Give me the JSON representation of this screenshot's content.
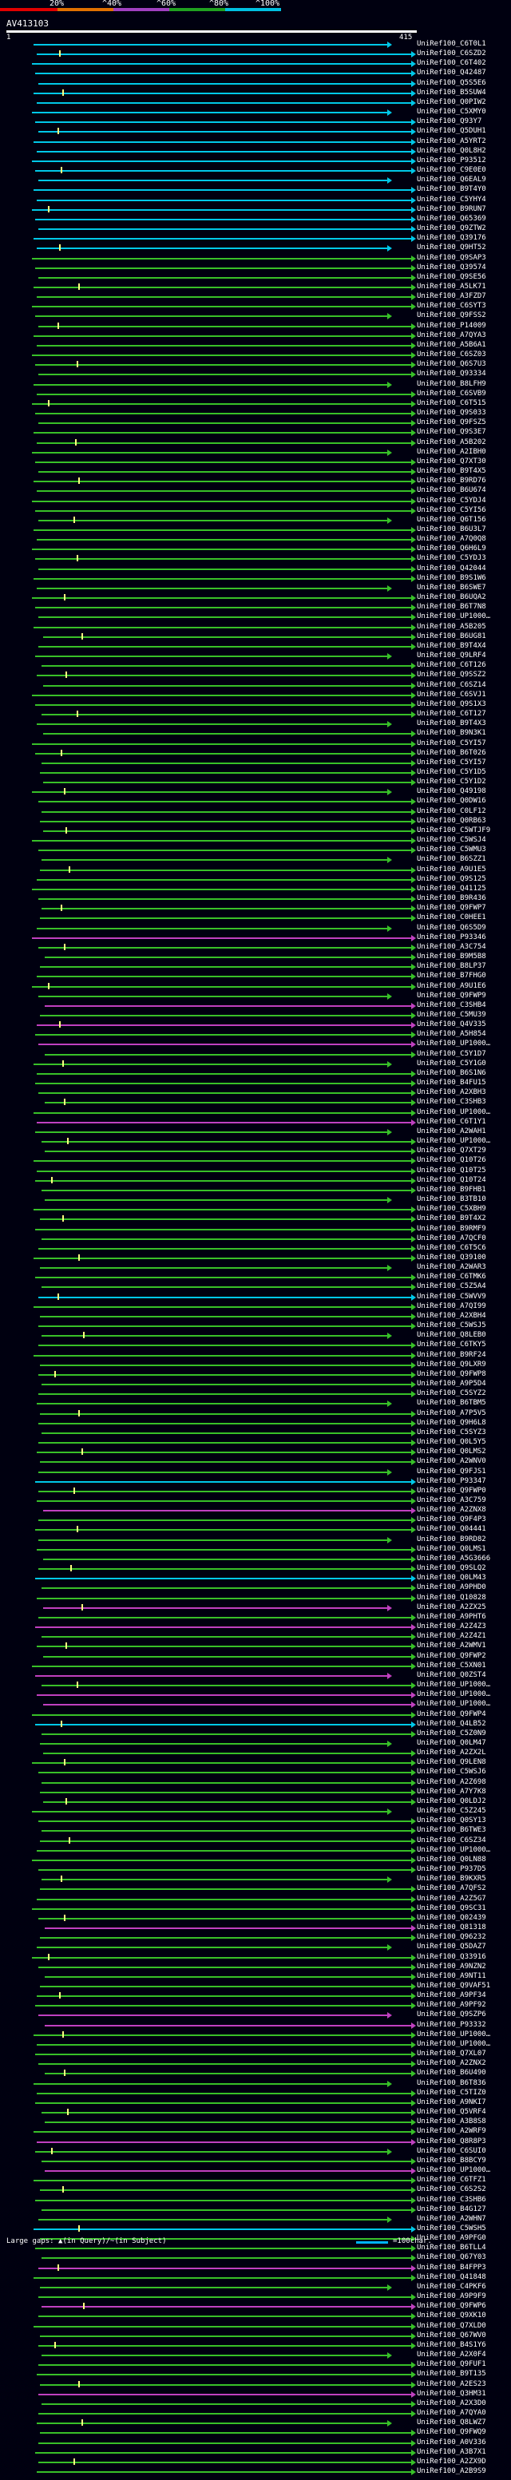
{
  "scale": {
    "labels": [
      "20%",
      "^40%",
      "^60%",
      "^80%",
      "^100%"
    ],
    "colors": [
      "#e00000",
      "#e07000",
      "#a040c0",
      "#20a020",
      "#00c0e0"
    ]
  },
  "query": {
    "title": "AV413103",
    "start": "1",
    "end": "415"
  },
  "colors": {
    "cyan": "#00c8e8",
    "green": "#38c028",
    "magenta": "#c040c0",
    "tick": "#ffff80"
  },
  "hits": [
    {
      "label": "UniRef100_C6T0L1",
      "color": "cyan"
    },
    {
      "label": "UniRef100_C6SZD2",
      "color": "cyan"
    },
    {
      "label": "UniRef100_C6T402",
      "color": "cyan"
    },
    {
      "label": "UniRef100_Q42487",
      "color": "cyan"
    },
    {
      "label": "UniRef100_Q5S5E6",
      "color": "cyan"
    },
    {
      "label": "UniRef100_B5SUW4",
      "color": "cyan"
    },
    {
      "label": "UniRef100_Q0PIW2",
      "color": "cyan"
    },
    {
      "label": "UniRef100_C5XMY0",
      "color": "cyan"
    },
    {
      "label": "UniRef100_Q93Y7",
      "color": "cyan"
    },
    {
      "label": "UniRef100_Q5DUH1",
      "color": "cyan"
    },
    {
      "label": "UniRef100_A5YRT2",
      "color": "cyan"
    },
    {
      "label": "UniRef100_Q0L8H2",
      "color": "cyan"
    },
    {
      "label": "UniRef100_P93512",
      "color": "cyan"
    },
    {
      "label": "UniRef100_C9E0E0",
      "color": "cyan"
    },
    {
      "label": "UniRef100_Q6EAL9",
      "color": "cyan"
    },
    {
      "label": "UniRef100_B9T4Y0",
      "color": "cyan"
    },
    {
      "label": "UniRef100_C5YHY4",
      "color": "cyan"
    },
    {
      "label": "UniRef100_B9RUN7",
      "color": "cyan"
    },
    {
      "label": "UniRef100_Q65369",
      "color": "cyan"
    },
    {
      "label": "UniRef100_Q9ZTW2",
      "color": "cyan"
    },
    {
      "label": "UniRef100_Q39176",
      "color": "cyan"
    },
    {
      "label": "UniRef100_Q9HT52",
      "color": "cyan"
    },
    {
      "label": "UniRef100_Q9SAP3",
      "color": "green"
    },
    {
      "label": "UniRef100_Q39574",
      "color": "green"
    },
    {
      "label": "UniRef100_Q9SE56",
      "color": "green"
    },
    {
      "label": "UniRef100_A5LK71",
      "color": "green"
    },
    {
      "label": "UniRef100_A3FZD7",
      "color": "green"
    },
    {
      "label": "UniRef100_C6SYT3",
      "color": "green"
    },
    {
      "label": "UniRef100_Q9FSS2",
      "color": "green"
    },
    {
      "label": "UniRef100_P14009",
      "color": "green"
    },
    {
      "label": "UniRef100_A7QYA3",
      "color": "green"
    },
    {
      "label": "UniRef100_A5B6A1",
      "color": "green"
    },
    {
      "label": "UniRef100_C6SZ03",
      "color": "green"
    },
    {
      "label": "UniRef100_Q6S7U3",
      "color": "green"
    },
    {
      "label": "UniRef100_Q93334",
      "color": "green"
    },
    {
      "label": "UniRef100_B8LFH9",
      "color": "green"
    },
    {
      "label": "UniRef100_C6SVB9",
      "color": "green"
    },
    {
      "label": "UniRef100_C6T515",
      "color": "green"
    },
    {
      "label": "UniRef100_Q9S033",
      "color": "green"
    },
    {
      "label": "UniRef100_Q9FSZ5",
      "color": "green"
    },
    {
      "label": "UniRef100_Q9S3E7",
      "color": "green"
    },
    {
      "label": "UniRef100_A5B202",
      "color": "green"
    },
    {
      "label": "UniRef100_A2IBH0",
      "color": "green"
    },
    {
      "label": "UniRef100_Q7XT30",
      "color": "green"
    },
    {
      "label": "UniRef100_B9T4X5",
      "color": "green"
    },
    {
      "label": "UniRef100_B9RD76",
      "color": "green"
    },
    {
      "label": "UniRef100_B6U674",
      "color": "green"
    },
    {
      "label": "UniRef100_C5YDJ4",
      "color": "green"
    },
    {
      "label": "UniRef100_C5YI56",
      "color": "green"
    },
    {
      "label": "UniRef100_Q6T156",
      "color": "green"
    },
    {
      "label": "UniRef100_B6U3L7",
      "color": "green"
    },
    {
      "label": "UniRef100_A7Q0Q8",
      "color": "green"
    },
    {
      "label": "UniRef100_Q6H6L9",
      "color": "green"
    },
    {
      "label": "UniRef100_C5YDJ3",
      "color": "green"
    },
    {
      "label": "UniRef100_Q42044",
      "color": "green"
    },
    {
      "label": "UniRef100_B9S1W6",
      "color": "green"
    },
    {
      "label": "UniRef100_B6SWE7",
      "color": "green"
    },
    {
      "label": "UniRef100_B6UQA2",
      "color": "green"
    },
    {
      "label": "UniRef100_B6T7N8",
      "color": "green"
    },
    {
      "label": "UniRef100_UP1000…",
      "color": "green"
    },
    {
      "label": "UniRef100_A5B205",
      "color": "green"
    },
    {
      "label": "UniRef100_B6UG81",
      "color": "green"
    },
    {
      "label": "UniRef100_B9T4X4",
      "color": "green"
    },
    {
      "label": "UniRef100_Q9LRF4",
      "color": "green"
    },
    {
      "label": "UniRef100_C6T126",
      "color": "green"
    },
    {
      "label": "UniRef100_Q9SSZ2",
      "color": "green"
    },
    {
      "label": "UniRef100_C6SZ14",
      "color": "green"
    },
    {
      "label": "UniRef100_C6SVJ1",
      "color": "green"
    },
    {
      "label": "UniRef100_Q9S1X3",
      "color": "green"
    },
    {
      "label": "UniRef100_C6T127",
      "color": "green"
    },
    {
      "label": "UniRef100_B9T4X3",
      "color": "green"
    },
    {
      "label": "UniRef100_B9N3K1",
      "color": "green"
    },
    {
      "label": "UniRef100_C5YI57",
      "color": "green"
    },
    {
      "label": "UniRef100_B6T026",
      "color": "green"
    },
    {
      "label": "UniRef100_C5YI57",
      "color": "green"
    },
    {
      "label": "UniRef100_C5Y1D5",
      "color": "green"
    },
    {
      "label": "UniRef100_C5Y1D2",
      "color": "green"
    },
    {
      "label": "UniRef100_Q49198",
      "color": "green"
    },
    {
      "label": "UniRef100_Q0DW16",
      "color": "green"
    },
    {
      "label": "UniRef100_C0LF12",
      "color": "green"
    },
    {
      "label": "UniRef100_Q0RB63",
      "color": "green"
    },
    {
      "label": "UniRef100_C5WTJF9",
      "color": "green"
    },
    {
      "label": "UniRef100_C5WSJ4",
      "color": "green"
    },
    {
      "label": "UniRef100_C5WMU3",
      "color": "green"
    },
    {
      "label": "UniRef100_B6SZZ1",
      "color": "green"
    },
    {
      "label": "UniRef100_A9U1E5",
      "color": "green"
    },
    {
      "label": "UniRef100_Q9S125",
      "color": "green"
    },
    {
      "label": "UniRef100_Q41125",
      "color": "green"
    },
    {
      "label": "UniRef100_B9R436",
      "color": "green"
    },
    {
      "label": "UniRef100_Q9FWP7",
      "color": "green"
    },
    {
      "label": "UniRef100_C0HEE1",
      "color": "green"
    },
    {
      "label": "UniRef100_Q6S5D9",
      "color": "green"
    },
    {
      "label": "UniRef100_P93346",
      "color": "magenta"
    },
    {
      "label": "UniRef100_A3C754",
      "color": "green"
    },
    {
      "label": "UniRef100_B9M5B8",
      "color": "green"
    },
    {
      "label": "UniRef100_B8LP37",
      "color": "green"
    },
    {
      "label": "UniRef100_B7FHG0",
      "color": "green"
    },
    {
      "label": "UniRef100_A9U1E6",
      "color": "green"
    },
    {
      "label": "UniRef100_Q9FWP9",
      "color": "green"
    },
    {
      "label": "UniRef100_C3SHB4",
      "color": "magenta"
    },
    {
      "label": "UniRef100_C5MU39",
      "color": "green"
    },
    {
      "label": "UniRef100_Q4V335",
      "color": "magenta"
    },
    {
      "label": "UniRef100_A5H854",
      "color": "green"
    },
    {
      "label": "UniRef100_UP1000…",
      "color": "magenta"
    },
    {
      "label": "UniRef100_C5Y1D7",
      "color": "green"
    },
    {
      "label": "UniRef100_C5Y1G0",
      "color": "green"
    },
    {
      "label": "UniRef100_B6S1N6",
      "color": "green"
    },
    {
      "label": "UniRef100_B4FU15",
      "color": "green"
    },
    {
      "label": "UniRef100_A2XBH3",
      "color": "green"
    },
    {
      "label": "UniRef100_C3SHB3",
      "color": "green"
    },
    {
      "label": "UniRef100_UP1000…",
      "color": "green"
    },
    {
      "label": "UniRef100_C6T1Y1",
      "color": "magenta"
    },
    {
      "label": "UniRef100_A2WAH1",
      "color": "green"
    },
    {
      "label": "UniRef100_UP1000…",
      "color": "green"
    },
    {
      "label": "UniRef100_Q7XT29",
      "color": "green"
    },
    {
      "label": "UniRef100_Q10T26",
      "color": "green"
    },
    {
      "label": "UniRef100_Q10T25",
      "color": "green"
    },
    {
      "label": "UniRef100_Q10T24",
      "color": "green"
    },
    {
      "label": "UniRef100_B9FHB1",
      "color": "green"
    },
    {
      "label": "UniRef100_B3TB10",
      "color": "green"
    },
    {
      "label": "UniRef100_C5XBH9",
      "color": "green"
    },
    {
      "label": "UniRef100_B9T4X2",
      "color": "green"
    },
    {
      "label": "UniRef100_B9RMF9",
      "color": "green"
    },
    {
      "label": "UniRef100_A7QCF0",
      "color": "green"
    },
    {
      "label": "UniRef100_C6T5C6",
      "color": "green"
    },
    {
      "label": "UniRef100_Q39100",
      "color": "green"
    },
    {
      "label": "UniRef100_A2WAR3",
      "color": "green"
    },
    {
      "label": "UniRef100_C6TMK6",
      "color": "green"
    },
    {
      "label": "UniRef100_C5Z5A4",
      "color": "green"
    },
    {
      "label": "UniRef100_C5WVV9",
      "color": "cyan"
    },
    {
      "label": "UniRef100_A7QI99",
      "color": "green"
    },
    {
      "label": "UniRef100_A2XBH4",
      "color": "green"
    },
    {
      "label": "UniRef100_C5WSJ5",
      "color": "green"
    },
    {
      "label": "UniRef100_Q8LEB0",
      "color": "green"
    },
    {
      "label": "UniRef100_C6TKY5",
      "color": "green"
    },
    {
      "label": "UniRef100_B9RF24",
      "color": "green"
    },
    {
      "label": "UniRef100_Q9LXR9",
      "color": "green"
    },
    {
      "label": "UniRef100_Q9FWP8",
      "color": "green"
    },
    {
      "label": "UniRef100_A9P5D4",
      "color": "green"
    },
    {
      "label": "UniRef100_C5SYZ2",
      "color": "green"
    },
    {
      "label": "UniRef100_B6TBM5",
      "color": "green"
    },
    {
      "label": "UniRef100_A7P5V5",
      "color": "green"
    },
    {
      "label": "UniRef100_Q9H6L8",
      "color": "green"
    },
    {
      "label": "UniRef100_C5SYZ3",
      "color": "green"
    },
    {
      "label": "UniRef100_Q0L5Y5",
      "color": "green"
    },
    {
      "label": "UniRef100_Q0LMS2",
      "color": "green"
    },
    {
      "label": "UniRef100_A2WNV0",
      "color": "green"
    },
    {
      "label": "UniRef100_Q9FJS1",
      "color": "green"
    },
    {
      "label": "UniRef100_P93347",
      "color": "cyan"
    },
    {
      "label": "UniRef100_Q9FWP0",
      "color": "green"
    },
    {
      "label": "UniRef100_A3C759",
      "color": "green"
    },
    {
      "label": "UniRef100_A2ZNX8",
      "color": "magenta"
    },
    {
      "label": "UniRef100_Q9F4P3",
      "color": "green"
    },
    {
      "label": "UniRef100_Q04441",
      "color": "green"
    },
    {
      "label": "UniRef100_B9RD82",
      "color": "green"
    },
    {
      "label": "UniRef100_Q0LMS1",
      "color": "green"
    },
    {
      "label": "UniRef100_A5G3666",
      "color": "green"
    },
    {
      "label": "UniRef100_Q9SLQ2",
      "color": "green"
    },
    {
      "label": "UniRef100_Q0LM43",
      "color": "cyan"
    },
    {
      "label": "UniRef100_A9PHD0",
      "color": "green"
    },
    {
      "label": "UniRef100_Q10828",
      "color": "green"
    },
    {
      "label": "UniRef100_A2ZX25",
      "color": "magenta"
    },
    {
      "label": "UniRef100_A9PHT6",
      "color": "green"
    },
    {
      "label": "UniRef100_A2Z4Z3",
      "color": "magenta"
    },
    {
      "label": "UniRef100_A2Z4Z1",
      "color": "green"
    },
    {
      "label": "UniRef100_A2WMV1",
      "color": "green"
    },
    {
      "label": "UniRef100_Q9FWP2",
      "color": "green"
    },
    {
      "label": "UniRef100_C5XN01",
      "color": "green"
    },
    {
      "label": "UniRef100_Q0ZST4",
      "color": "magenta"
    },
    {
      "label": "UniRef100_UP1000…",
      "color": "green"
    },
    {
      "label": "UniRef100_UP1000…",
      "color": "magenta"
    },
    {
      "label": "UniRef100_UP1000…",
      "color": "magenta"
    },
    {
      "label": "UniRef100_Q9FWP4",
      "color": "green"
    },
    {
      "label": "UniRef100_Q4LB52",
      "color": "cyan"
    },
    {
      "label": "UniRef100_C5Z0N9",
      "color": "green"
    },
    {
      "label": "UniRef100_Q0LM47",
      "color": "green"
    },
    {
      "label": "UniRef100_A2ZX2L",
      "color": "green"
    },
    {
      "label": "UniRef100_Q9LEN8",
      "color": "green"
    },
    {
      "label": "UniRef100_C5WSJ6",
      "color": "green"
    },
    {
      "label": "UniRef100_A2Z698",
      "color": "green"
    },
    {
      "label": "UniRef100_A7Y7K8",
      "color": "green"
    },
    {
      "label": "UniRef100_Q0LDJ2",
      "color": "green"
    },
    {
      "label": "UniRef100_C5Z245",
      "color": "green"
    },
    {
      "label": "UniRef100_Q0SY13",
      "color": "green"
    },
    {
      "label": "UniRef100_B6TWE3",
      "color": "green"
    },
    {
      "label": "UniRef100_C6SZ34",
      "color": "green"
    },
    {
      "label": "UniRef100_UP1000…",
      "color": "green"
    },
    {
      "label": "UniRef100_Q0LN88",
      "color": "green"
    },
    {
      "label": "UniRef100_P937D5",
      "color": "green"
    },
    {
      "label": "UniRef100_B9KXR5",
      "color": "green"
    },
    {
      "label": "UniRef100_A7QFS2",
      "color": "green"
    },
    {
      "label": "UniRef100_A2Z5G7",
      "color": "green"
    },
    {
      "label": "UniRef100_Q9SC31",
      "color": "green"
    },
    {
      "label": "UniRef100_Q02439",
      "color": "green"
    },
    {
      "label": "UniRef100_Q81318",
      "color": "magenta"
    },
    {
      "label": "UniRef100_Q96232",
      "color": "green"
    },
    {
      "label": "UniRef100_Q5DAZ7",
      "color": "green"
    },
    {
      "label": "UniRef100_Q33916",
      "color": "green"
    },
    {
      "label": "UniRef100_A9NZN2",
      "color": "green"
    },
    {
      "label": "UniRef100_A9NT11",
      "color": "green"
    },
    {
      "label": "UniRef100_Q9VAF51",
      "color": "green"
    },
    {
      "label": "UniRef100_A9PF34",
      "color": "green"
    },
    {
      "label": "UniRef100_A9PF92",
      "color": "green"
    },
    {
      "label": "UniRef100_Q9SZP6",
      "color": "magenta"
    },
    {
      "label": "UniRef100_P93332",
      "color": "magenta"
    },
    {
      "label": "UniRef100_UP1000…",
      "color": "green"
    },
    {
      "label": "UniRef100_UP1000…",
      "color": "green"
    },
    {
      "label": "UniRef100_Q7XL07",
      "color": "green"
    },
    {
      "label": "UniRef100_A2ZNX2",
      "color": "green"
    },
    {
      "label": "UniRef100_B6U490",
      "color": "green"
    },
    {
      "label": "UniRef100_B6T836",
      "color": "green"
    },
    {
      "label": "UniRef100_C5TIZ0",
      "color": "green"
    },
    {
      "label": "UniRef100_A9NKI7",
      "color": "green"
    },
    {
      "label": "UniRef100_Q5VRF4",
      "color": "green"
    },
    {
      "label": "UniRef100_A3B8S8",
      "color": "green"
    },
    {
      "label": "UniRef100_A2WRF9",
      "color": "green"
    },
    {
      "label": "UniRef100_Q8R8P3",
      "color": "magenta"
    },
    {
      "label": "UniRef100_C6SUI0",
      "color": "green"
    },
    {
      "label": "UniRef100_B8BCY9",
      "color": "green"
    },
    {
      "label": "UniRef100_UP1000…",
      "color": "magenta"
    },
    {
      "label": "UniRef100_C6TFZ1",
      "color": "green"
    },
    {
      "label": "UniRef100_C6S2S2",
      "color": "green"
    },
    {
      "label": "UniRef100_C3SHB6",
      "color": "green"
    },
    {
      "label": "UniRef100_B4G127",
      "color": "green"
    },
    {
      "label": "UniRef100_A2WHN7",
      "color": "green"
    },
    {
      "label": "UniRef100_C5WSH5",
      "color": "cyan"
    },
    {
      "label": "UniRef100_A9PFG0",
      "color": "green"
    },
    {
      "label": "UniRef100_B6TLL4",
      "color": "green"
    },
    {
      "label": "UniRef100_Q67Y03",
      "color": "green"
    },
    {
      "label": "UniRef100_B4FPP3",
      "color": "magenta"
    },
    {
      "label": "UniRef100_Q41848",
      "color": "green"
    },
    {
      "label": "UniRef100_C4PKF6",
      "color": "green"
    },
    {
      "label": "UniRef100_A9P9F9",
      "color": "green"
    },
    {
      "label": "UniRef100_Q9FWP6",
      "color": "magenta"
    },
    {
      "label": "UniRef100_Q9XK10",
      "color": "green"
    },
    {
      "label": "UniRef100_Q7XLD0",
      "color": "green"
    },
    {
      "label": "UniRef100_Q67WV0",
      "color": "green"
    },
    {
      "label": "UniRef100_B4S1Y6",
      "color": "green"
    },
    {
      "label": "UniRef100_A2X0F4",
      "color": "green"
    },
    {
      "label": "UniRef100_Q9FUF1",
      "color": "green"
    },
    {
      "label": "UniRef100_B9T135",
      "color": "green"
    },
    {
      "label": "UniRef100_A2ES23",
      "color": "green"
    },
    {
      "label": "UniRef100_Q3HM31",
      "color": "magenta"
    },
    {
      "label": "UniRef100_A2X3D0",
      "color": "green"
    },
    {
      "label": "UniRef100_A7QYA0",
      "color": "green"
    },
    {
      "label": "UniRef100_Q8LWZ7",
      "color": "green"
    },
    {
      "label": "UniRef100_Q9FWQ9",
      "color": "green"
    },
    {
      "label": "UniRef100_A0V336",
      "color": "green"
    },
    {
      "label": "UniRef100_A3B7X1",
      "color": "green"
    },
    {
      "label": "UniRef100_A2ZX9D",
      "color": "green"
    },
    {
      "label": "UniRef100_A2B9S9",
      "color": "green"
    }
  ],
  "footer": {
    "gaps_text": "Large gaps: ▲(in Query)/~(in Subject)",
    "legend_text": "=100char."
  }
}
